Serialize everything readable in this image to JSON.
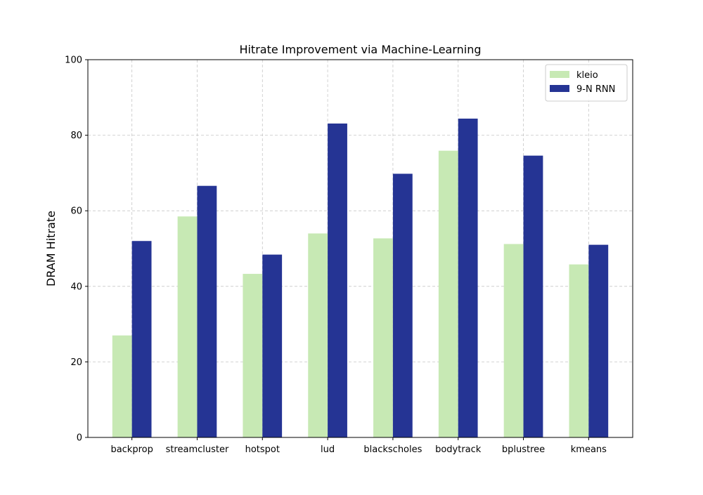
{
  "chart_data": {
    "type": "bar",
    "title": "Hitrate Improvement via Machine-Learning",
    "xlabel": "",
    "ylabel": "DRAM Hitrate",
    "ylim": [
      0,
      100
    ],
    "yticks": [
      0,
      20,
      40,
      60,
      80,
      100
    ],
    "grid": true,
    "legend_position": "top-right",
    "categories": [
      "backprop",
      "streamcluster",
      "hotspot",
      "lud",
      "blackscholes",
      "bodytrack",
      "bplustree",
      "kmeans"
    ],
    "series": [
      {
        "name": "kleio",
        "color": "#c7e9b4",
        "values": [
          27.0,
          58.5,
          43.3,
          54.0,
          52.7,
          75.9,
          51.2,
          45.8
        ]
      },
      {
        "name": "9-N RNN",
        "color": "#253494",
        "values": [
          52.0,
          66.6,
          48.4,
          83.1,
          69.8,
          84.4,
          74.6,
          51.0
        ]
      }
    ]
  }
}
